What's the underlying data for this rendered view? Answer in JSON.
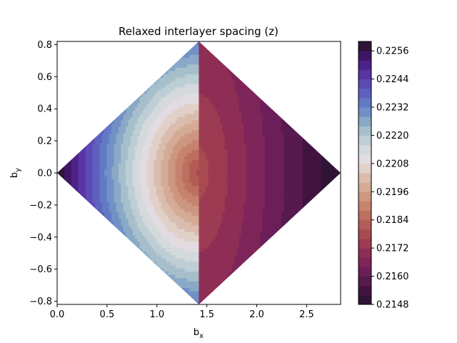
{
  "chart_data": {
    "type": "heatmap",
    "title": "Relaxed interlayer spacing (z)",
    "xlabel": {
      "base": "b",
      "sub": "x"
    },
    "ylabel": {
      "base": "b",
      "sub": "y"
    },
    "xlim": [
      0.0,
      2.84
    ],
    "ylim": [
      -0.82,
      0.82
    ],
    "x_ticks": [
      0.0,
      0.5,
      1.0,
      1.5,
      2.0,
      2.5
    ],
    "x_tick_labels": [
      "0.0",
      "0.5",
      "1.0",
      "1.5",
      "2.0",
      "2.5"
    ],
    "y_ticks": [
      -0.8,
      -0.6,
      -0.4,
      -0.2,
      0.0,
      0.2,
      0.4,
      0.6,
      0.8
    ],
    "y_tick_labels": [
      "−0.8",
      "−0.6",
      "−0.4",
      "−0.2",
      "0.0",
      "0.2",
      "0.4",
      "0.6",
      "0.8"
    ],
    "domain": {
      "shape": "rhombus",
      "vertices": [
        [
          0.0,
          0.0
        ],
        [
          1.42,
          0.82
        ],
        [
          2.84,
          0.0
        ],
        [
          1.42,
          -0.82
        ]
      ]
    },
    "minimum_location": [
      1.42,
      0.0
    ],
    "colormap": "twilight_shifted",
    "colorbar": {
      "levels": [
        0.2148,
        0.2152,
        0.2156,
        0.216,
        0.2164,
        0.2168,
        0.2172,
        0.2176,
        0.218,
        0.2184,
        0.2188,
        0.2192,
        0.2196,
        0.22,
        0.2204,
        0.2208,
        0.2212,
        0.2216,
        0.222,
        0.2224,
        0.2228,
        0.2232,
        0.2236,
        0.224,
        0.2244,
        0.2248,
        0.2252,
        0.2256,
        0.226
      ],
      "tick_values": [
        0.2148,
        0.216,
        0.2172,
        0.2184,
        0.2196,
        0.2208,
        0.222,
        0.2232,
        0.2244,
        0.2256
      ],
      "tick_labels": [
        "0.2148",
        "0.2160",
        "0.2172",
        "0.2184",
        "0.2196",
        "0.2208",
        "0.2220",
        "0.2232",
        "0.2244",
        "0.2256"
      ],
      "band_colors": [
        "#2f1436",
        "#43133f",
        "#561a4e",
        "#6b1e5a",
        "#7e2559",
        "#8e2e55",
        "#9d3b52",
        "#a84b50",
        "#b35c56",
        "#bd6f60",
        "#c6836d",
        "#cd977f",
        "#d4ab95",
        "#dabdae",
        "#e0d0c8",
        "#e2dbe1",
        "#d4d9dc",
        "#bdced4",
        "#a6bfcb",
        "#89a9c7",
        "#7090c6",
        "#6279c4",
        "#5e62bf",
        "#5e4ab4",
        "#5835a4",
        "#4d2288",
        "#3f1665",
        "#2f1436"
      ]
    }
  }
}
